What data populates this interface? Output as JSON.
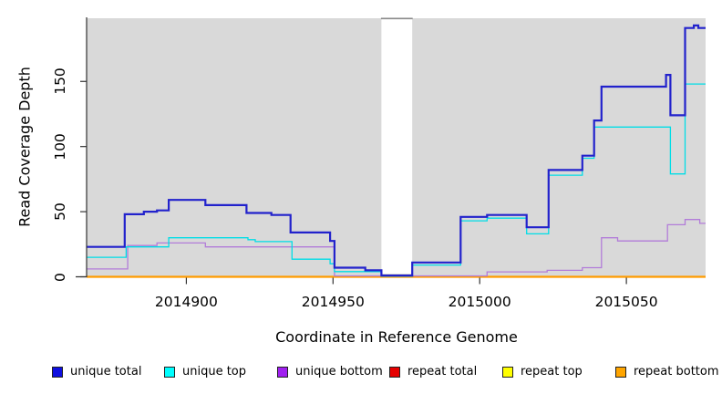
{
  "figure": {
    "xlabel": "Coordinate in Reference Genome",
    "ylabel": "Read Coverage Depth"
  },
  "chart_data": {
    "type": "line",
    "step": "after",
    "title": "",
    "xlabel": "Coordinate in Reference Genome",
    "ylabel": "Read Coverage Depth",
    "xlim": [
      2014866,
      2015077
    ],
    "ylim": [
      0,
      198.5
    ],
    "xticks": [
      2014900,
      2014950,
      2015000,
      2015050
    ],
    "yticks": [
      0,
      50,
      100,
      150
    ],
    "grid": false,
    "legend_position": "bottom",
    "plot_bg": "#d9d9d9",
    "page_bg": "#ffffff",
    "axis_color": "#333333",
    "masked_region": {
      "x0": 2014966.5,
      "x1": 2014977,
      "color": "#ffffff",
      "border_color": "#8a8a8a"
    },
    "series": [
      {
        "name": "unique total",
        "legend_color": "#0f0fe0",
        "line_color": "#2222cc",
        "points": [
          [
            2014866,
            23
          ],
          [
            2014879,
            48
          ],
          [
            2014885.5,
            50
          ],
          [
            2014890,
            51
          ],
          [
            2014894,
            59
          ],
          [
            2014906.5,
            55
          ],
          [
            2014920.5,
            49
          ],
          [
            2014929,
            47.5
          ],
          [
            2014935.5,
            34
          ],
          [
            2014949,
            27.5
          ],
          [
            2014950.5,
            7
          ],
          [
            2014961,
            5
          ],
          [
            2014966.5,
            1
          ],
          [
            2014977,
            11
          ],
          [
            2014993.5,
            46
          ],
          [
            2015002.5,
            47.5
          ],
          [
            2015016,
            38
          ],
          [
            2015023.5,
            82
          ],
          [
            2015035,
            93
          ],
          [
            2015039,
            120
          ],
          [
            2015041.5,
            146
          ],
          [
            2015063.5,
            155
          ],
          [
            2015065,
            124
          ],
          [
            2015070,
            191
          ],
          [
            2015073,
            193
          ],
          [
            2015074.5,
            191
          ]
        ]
      },
      {
        "name": "unique top",
        "legend_color": "#00ffff",
        "line_color": "#00dde6",
        "points": [
          [
            2014866,
            15
          ],
          [
            2014879.5,
            23
          ],
          [
            2014894,
            30
          ],
          [
            2014921,
            28.5
          ],
          [
            2014923.5,
            27
          ],
          [
            2014936,
            13.5
          ],
          [
            2014949,
            10
          ],
          [
            2014950.5,
            4
          ],
          [
            2014966.5,
            0.5
          ],
          [
            2014977,
            9
          ],
          [
            2014993.5,
            43
          ],
          [
            2015002.5,
            45
          ],
          [
            2015016,
            33
          ],
          [
            2015023.5,
            78
          ],
          [
            2015035,
            91
          ],
          [
            2015039,
            115
          ],
          [
            2015065,
            79
          ],
          [
            2015070,
            148
          ]
        ]
      },
      {
        "name": "unique bottom",
        "legend_color": "#a020f0",
        "line_color": "#b27cd9",
        "points": [
          [
            2014866,
            6
          ],
          [
            2014880,
            24
          ],
          [
            2014890,
            26
          ],
          [
            2014906.5,
            23
          ],
          [
            2014950.5,
            0.7
          ],
          [
            2015002.5,
            3.8
          ],
          [
            2015023,
            5
          ],
          [
            2015035,
            7
          ],
          [
            2015041.5,
            30
          ],
          [
            2015047,
            27.5
          ],
          [
            2015064,
            40
          ],
          [
            2015070,
            44
          ],
          [
            2015075,
            41
          ]
        ]
      },
      {
        "name": "repeat total",
        "legend_color": "#e60000",
        "line_color": "#e60000",
        "points": [
          [
            2014866,
            0
          ]
        ]
      },
      {
        "name": "repeat top",
        "legend_color": "#ffff00",
        "line_color": "#ffff00",
        "points": [
          [
            2014866,
            0
          ]
        ]
      },
      {
        "name": "repeat bottom",
        "legend_color": "#ffa500",
        "line_color": "#ff9c00",
        "points": [
          [
            2014866,
            0
          ]
        ]
      }
    ]
  }
}
